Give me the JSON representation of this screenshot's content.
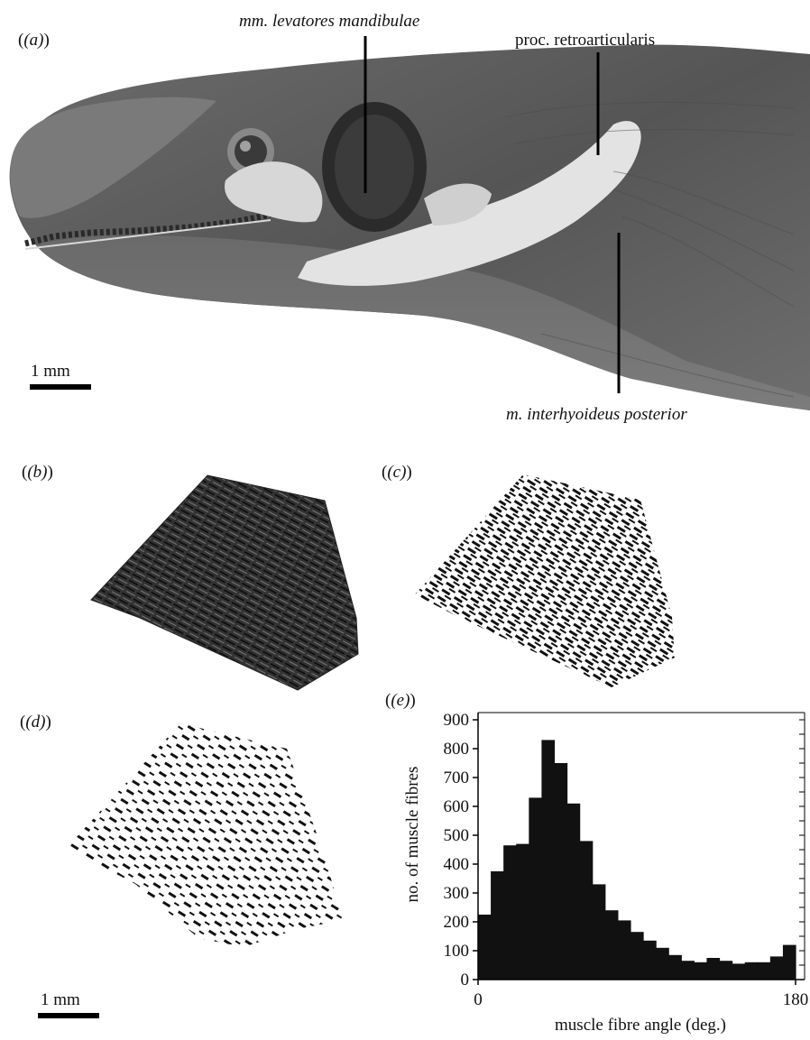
{
  "figure": {
    "panels": {
      "a": "(a)",
      "b": "(b)",
      "c": "(c)",
      "d": "(d)",
      "e": "(e)"
    },
    "labels": {
      "levatores": "mm. levatores mandibulae",
      "retroarticularis": "proc. retroarticularis",
      "interhyoideus": "m. interhyoideus posterior"
    },
    "scale_bars": {
      "top": "1 mm",
      "bottom": "1 mm"
    }
  },
  "chart_data": {
    "type": "bar",
    "xlabel": "muscle fibre angle (deg.)",
    "ylabel": "no. of muscle fibres",
    "xlim": [
      0,
      180
    ],
    "ylim": [
      0,
      900
    ],
    "xticks": [
      "0",
      "180"
    ],
    "yticks": [
      "0",
      "100",
      "200",
      "300",
      "400",
      "500",
      "600",
      "700",
      "800",
      "900"
    ],
    "bin_width": 7.5,
    "values": [
      225,
      375,
      465,
      470,
      630,
      830,
      750,
      610,
      480,
      330,
      240,
      205,
      165,
      135,
      110,
      85,
      65,
      60,
      75,
      65,
      55,
      60,
      60,
      80,
      120
    ],
    "bar_color": "#111111"
  }
}
